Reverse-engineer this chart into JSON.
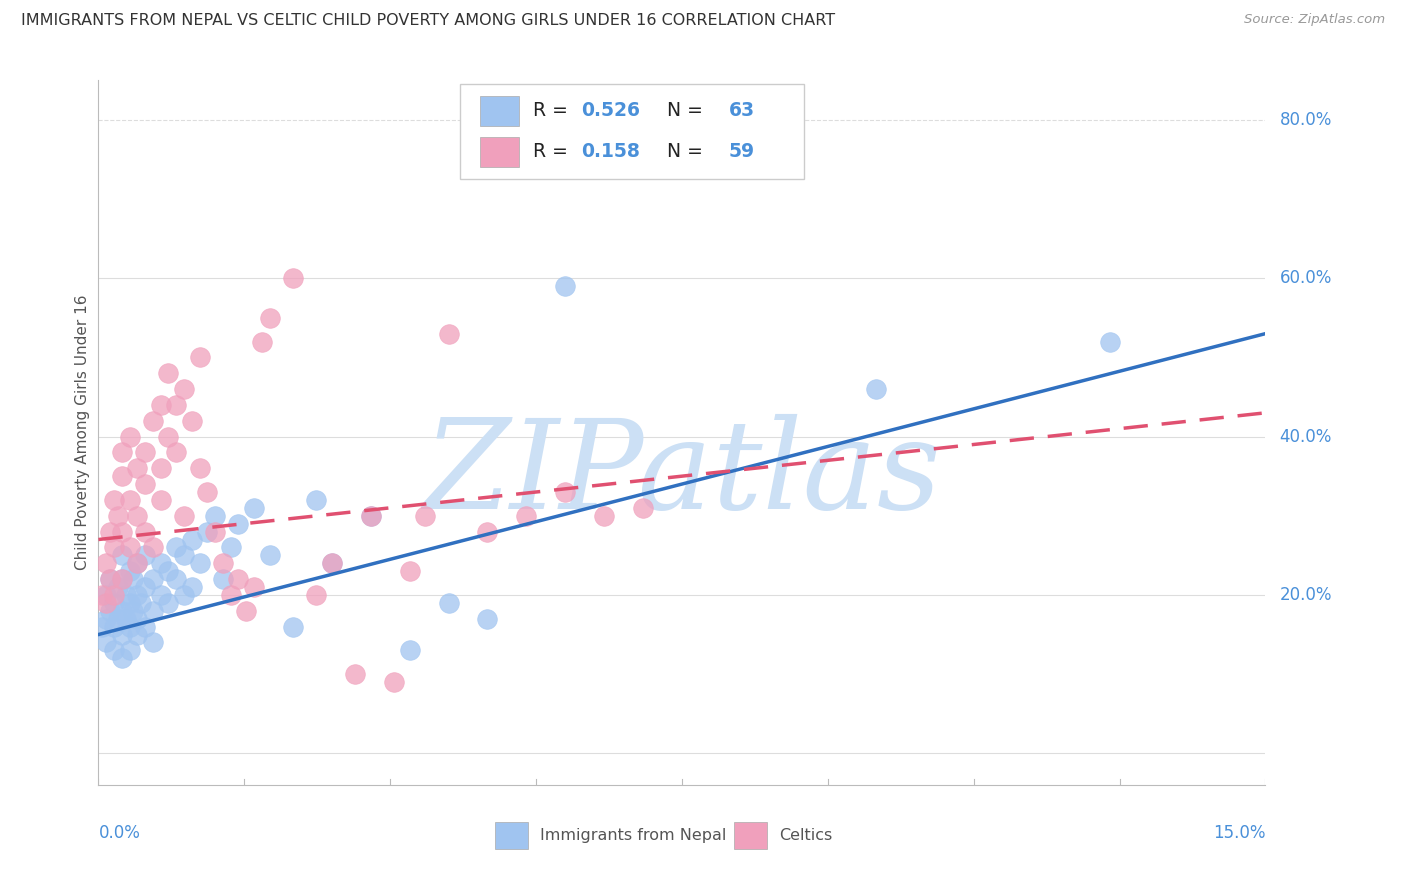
{
  "title": "IMMIGRANTS FROM NEPAL VS CELTIC CHILD POVERTY AMONG GIRLS UNDER 16 CORRELATION CHART",
  "source": "Source: ZipAtlas.com",
  "ylabel": "Child Poverty Among Girls Under 16",
  "xmin": 0.0,
  "xmax": 0.15,
  "ymin": -0.04,
  "ymax": 0.85,
  "ytick_vals": [
    0.0,
    0.2,
    0.4,
    0.6,
    0.8
  ],
  "ytick_labels": [
    "",
    "20.0%",
    "40.0%",
    "60.0%",
    "80.0%"
  ],
  "blue_color": "#a0c4f0",
  "pink_color": "#f0a0bc",
  "blue_line_color": "#3070c0",
  "pink_line_color": "#e05070",
  "axis_label_color": "#4a90d9",
  "watermark_color": "#cce0f5",
  "title_color": "#333333",
  "source_color": "#999999",
  "grid_color": "#dddddd",
  "R_blue": 0.526,
  "N_blue": 63,
  "R_pink": 0.158,
  "N_pink": 59,
  "blue_x": [
    0.0005,
    0.001,
    0.001,
    0.001,
    0.0015,
    0.0015,
    0.002,
    0.002,
    0.002,
    0.0025,
    0.0025,
    0.003,
    0.003,
    0.003,
    0.003,
    0.003,
    0.0035,
    0.0035,
    0.004,
    0.004,
    0.004,
    0.004,
    0.0045,
    0.0045,
    0.005,
    0.005,
    0.005,
    0.005,
    0.0055,
    0.006,
    0.006,
    0.006,
    0.007,
    0.007,
    0.007,
    0.008,
    0.008,
    0.009,
    0.009,
    0.01,
    0.01,
    0.011,
    0.011,
    0.012,
    0.012,
    0.013,
    0.014,
    0.015,
    0.016,
    0.017,
    0.018,
    0.02,
    0.022,
    0.025,
    0.028,
    0.03,
    0.035,
    0.04,
    0.045,
    0.05,
    0.06,
    0.1,
    0.13
  ],
  "blue_y": [
    0.16,
    0.17,
    0.2,
    0.14,
    0.18,
    0.22,
    0.16,
    0.19,
    0.13,
    0.17,
    0.21,
    0.15,
    0.18,
    0.22,
    0.12,
    0.25,
    0.17,
    0.2,
    0.16,
    0.19,
    0.23,
    0.13,
    0.18,
    0.22,
    0.17,
    0.2,
    0.15,
    0.24,
    0.19,
    0.16,
    0.21,
    0.25,
    0.18,
    0.22,
    0.14,
    0.2,
    0.24,
    0.19,
    0.23,
    0.22,
    0.26,
    0.2,
    0.25,
    0.21,
    0.27,
    0.24,
    0.28,
    0.3,
    0.22,
    0.26,
    0.29,
    0.31,
    0.25,
    0.16,
    0.32,
    0.24,
    0.3,
    0.13,
    0.19,
    0.17,
    0.59,
    0.46,
    0.52
  ],
  "pink_x": [
    0.0005,
    0.001,
    0.001,
    0.0015,
    0.0015,
    0.002,
    0.002,
    0.002,
    0.0025,
    0.003,
    0.003,
    0.003,
    0.003,
    0.004,
    0.004,
    0.004,
    0.005,
    0.005,
    0.005,
    0.006,
    0.006,
    0.006,
    0.007,
    0.007,
    0.008,
    0.008,
    0.008,
    0.009,
    0.009,
    0.01,
    0.01,
    0.011,
    0.011,
    0.012,
    0.013,
    0.013,
    0.014,
    0.015,
    0.016,
    0.017,
    0.018,
    0.019,
    0.02,
    0.021,
    0.022,
    0.025,
    0.028,
    0.03,
    0.033,
    0.035,
    0.038,
    0.04,
    0.042,
    0.045,
    0.05,
    0.055,
    0.06,
    0.065,
    0.07
  ],
  "pink_y": [
    0.2,
    0.24,
    0.19,
    0.28,
    0.22,
    0.32,
    0.26,
    0.2,
    0.3,
    0.35,
    0.28,
    0.38,
    0.22,
    0.4,
    0.32,
    0.26,
    0.36,
    0.3,
    0.24,
    0.34,
    0.28,
    0.38,
    0.42,
    0.26,
    0.36,
    0.32,
    0.44,
    0.4,
    0.48,
    0.38,
    0.44,
    0.46,
    0.3,
    0.42,
    0.36,
    0.5,
    0.33,
    0.28,
    0.24,
    0.2,
    0.22,
    0.18,
    0.21,
    0.52,
    0.55,
    0.6,
    0.2,
    0.24,
    0.1,
    0.3,
    0.09,
    0.23,
    0.3,
    0.53,
    0.28,
    0.3,
    0.33,
    0.3,
    0.31
  ]
}
